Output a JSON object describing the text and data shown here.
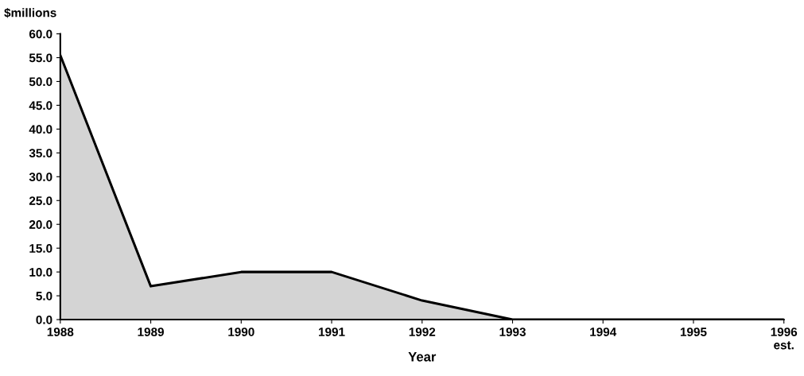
{
  "chart_data": {
    "type": "area",
    "ylabel": "$millions",
    "xlabel": "Year",
    "categories": [
      "1988",
      "1989",
      "1990",
      "1991",
      "1992",
      "1993",
      "1994",
      "1995",
      "1996\nest."
    ],
    "series": [
      {
        "color": "#d4d4d4",
        "values": [
          55.5,
          7,
          10,
          10,
          4,
          0,
          0,
          0,
          0
        ]
      }
    ],
    "ylim": [
      0,
      60
    ],
    "yticks": [
      {
        "value": 0,
        "label": "0.0"
      },
      {
        "value": 5,
        "label": "5.0"
      },
      {
        "value": 10,
        "label": "10.0"
      },
      {
        "value": 15,
        "label": "15.0"
      },
      {
        "value": 20,
        "label": "20.0"
      },
      {
        "value": 25,
        "label": "25.0"
      },
      {
        "value": 30,
        "label": "30.0"
      },
      {
        "value": 35,
        "label": "35.0"
      },
      {
        "value": 40,
        "label": "40.0"
      },
      {
        "value": 45,
        "label": "45.0"
      },
      {
        "value": 50,
        "label": "50.0"
      },
      {
        "value": 55,
        "label": "55.0"
      },
      {
        "value": 60,
        "label": "60.0"
      }
    ],
    "grid": false,
    "legend": false
  }
}
